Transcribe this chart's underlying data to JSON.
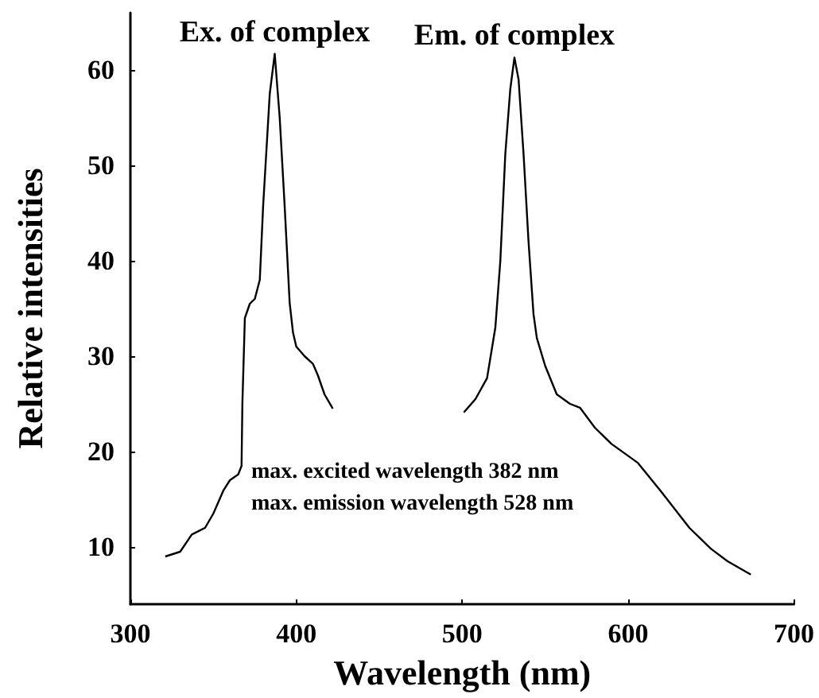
{
  "chart_data": {
    "type": "line",
    "xlabel": "Wavelength (nm)",
    "ylabel": "Relative intensities",
    "xlim": [
      300,
      700
    ],
    "xticks": [
      300,
      400,
      500,
      600,
      700
    ],
    "ylim": [
      4,
      66
    ],
    "yticks": [
      10,
      20,
      30,
      40,
      50,
      60
    ],
    "grid": false,
    "legend": false,
    "marker": "none",
    "line_style": "solid",
    "annotations": [
      "max. excited wavelength 382 nm",
      "max. emission wavelength 528 nm"
    ],
    "series": [
      {
        "name": "Ex. of complex",
        "color": "#000000",
        "x": [
          321,
          330,
          337,
          345,
          350,
          356,
          360,
          365,
          367,
          367.5,
          369,
          372,
          375,
          378,
          380,
          384,
          387,
          390,
          393,
          396,
          398,
          400,
          405,
          410,
          413,
          417,
          422
        ],
        "values": [
          9,
          9.5,
          11.3,
          12,
          13.5,
          15.9,
          17,
          17.6,
          18.5,
          25,
          34,
          35.5,
          36,
          38,
          45.7,
          57.5,
          61.7,
          55,
          45.7,
          35.6,
          32.5,
          31,
          30,
          29.2,
          28,
          26,
          24.5
        ]
      },
      {
        "name": "Em. of complex",
        "color": "#000000",
        "x": [
          501,
          508,
          515,
          520,
          523,
          526,
          529,
          531.5,
          534,
          537,
          540,
          543,
          545,
          550,
          557,
          565,
          571,
          580,
          590,
          606,
          620,
          637,
          650,
          660,
          674
        ],
        "values": [
          24.1,
          25.5,
          27.7,
          33,
          40,
          51.2,
          58,
          61.3,
          59,
          51.2,
          42,
          34.4,
          31.9,
          29,
          26,
          25,
          24.6,
          22.5,
          20.8,
          18.8,
          15.8,
          12,
          9.8,
          8.5,
          7.1
        ]
      }
    ]
  }
}
